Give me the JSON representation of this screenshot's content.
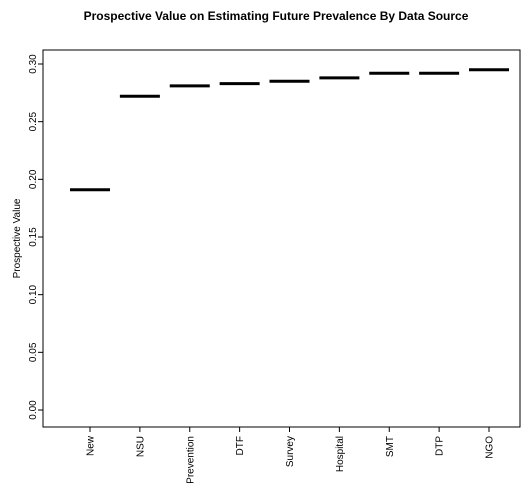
{
  "chart_data": {
    "type": "scatter",
    "marker": "horizontal-bar",
    "title": "Prospective Value on Estimating Future Prevalence By Data Source",
    "xlabel": "",
    "ylabel": "Prospective Value",
    "categories": [
      "New",
      "NSU",
      "Prevention",
      "DTF",
      "Survey",
      "Hospital",
      "SMT",
      "DTP",
      "NGO"
    ],
    "values": [
      0.191,
      0.272,
      0.281,
      0.283,
      0.285,
      0.288,
      0.292,
      0.292,
      0.295
    ],
    "ylim": [
      0.0,
      0.31
    ],
    "yticks": [
      0.0,
      0.05,
      0.1,
      0.15,
      0.2,
      0.25,
      0.3
    ],
    "ytick_labels": [
      "0.00",
      "0.05",
      "0.10",
      "0.15",
      "0.20",
      "0.25",
      "0.30"
    ],
    "grid": false,
    "legend": "none",
    "color": "#000000"
  }
}
